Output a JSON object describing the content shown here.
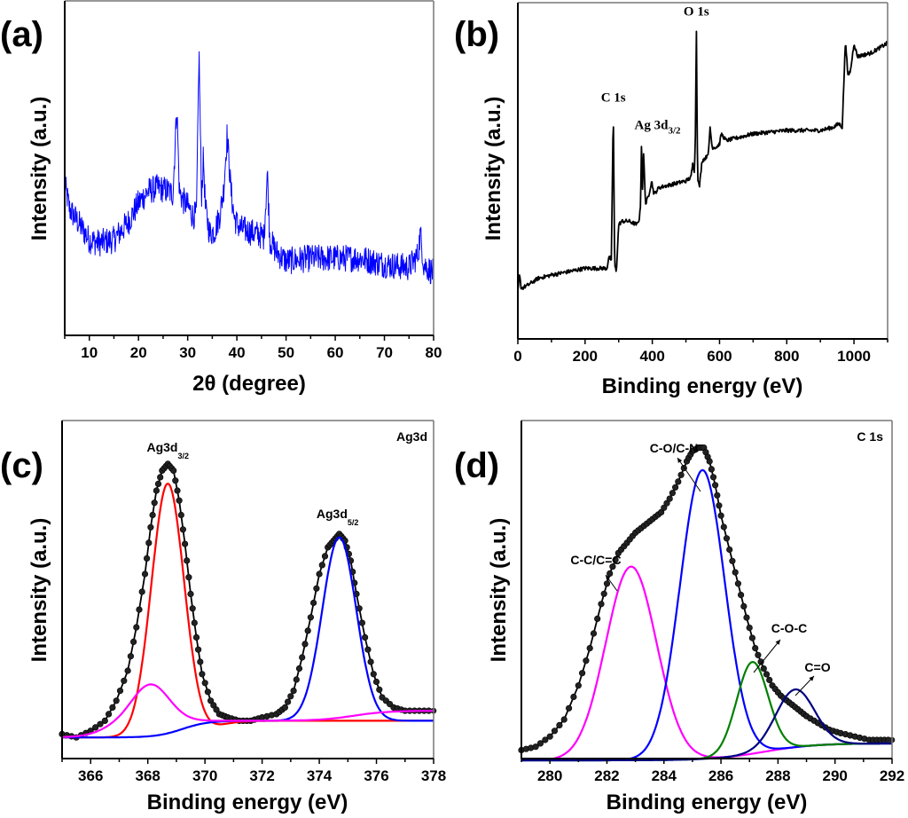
{
  "figure": {
    "panels": [
      "(a)",
      "(b)",
      "(c)",
      "(d)"
    ]
  },
  "chart_data": [
    {
      "id": "a",
      "type": "line",
      "panel_label": "(a)",
      "title": "",
      "xlabel": "2θ (degree)",
      "ylabel": "Intensity (a.u.)",
      "xlim": [
        5,
        80
      ],
      "ylim": [
        0,
        100
      ],
      "xticks": [
        10,
        20,
        30,
        40,
        50,
        60,
        70,
        80
      ],
      "yticks": [],
      "grid": false,
      "series": [
        {
          "name": "XRD pattern",
          "color": "#0000ff",
          "style": "noisy-line",
          "x": [
            5,
            6,
            8,
            10,
            12,
            15,
            18,
            20,
            22,
            24,
            26,
            27,
            27.8,
            28.3,
            29,
            30,
            31,
            31.8,
            32.3,
            32.8,
            33.2,
            33.6,
            34.5,
            35.5,
            36.5,
            37.3,
            38,
            38.3,
            38.8,
            39.5,
            40.5,
            42,
            44,
            45.5,
            46.2,
            46.7,
            48,
            50,
            55,
            60,
            65,
            70,
            75,
            76.8,
            77.3,
            78,
            80
          ],
          "y": [
            44,
            36,
            31,
            26,
            25,
            26,
            32,
            38,
            42,
            43,
            42,
            41,
            70,
            42,
            39,
            37,
            34,
            34,
            88,
            40,
            53,
            36,
            28,
            29,
            34,
            42,
            60,
            54,
            42,
            33,
            30,
            29,
            28,
            27,
            48,
            26,
            22,
            19,
            20,
            20,
            20,
            18,
            17,
            21,
            28,
            18,
            15
          ]
        }
      ],
      "annotations": []
    },
    {
      "id": "b",
      "type": "line",
      "panel_label": "(b)",
      "title": "",
      "xlabel": "Binding energy (eV)",
      "ylabel": "Intensity (a.u.)",
      "xlim": [
        0,
        1100
      ],
      "ylim": [
        0,
        100
      ],
      "xticks": [
        0,
        200,
        400,
        600,
        800,
        1000
      ],
      "yticks": [],
      "grid": false,
      "series": [
        {
          "name": "XPS survey",
          "color": "#000000",
          "style": "line",
          "x": [
            0,
            5,
            10,
            30,
            60,
            100,
            150,
            200,
            240,
            265,
            270,
            275,
            278,
            284,
            288,
            293,
            300,
            310,
            330,
            355,
            362,
            365,
            368,
            371,
            374,
            380,
            390,
            398,
            405,
            420,
            460,
            500,
            515,
            520,
            525,
            528,
            531,
            535,
            540,
            548,
            560,
            568,
            572,
            578,
            590,
            600,
            605,
            620,
            700,
            800,
            900,
            940,
            955,
            965,
            970,
            975,
            982,
            990,
            1000,
            1010,
            1050,
            1100
          ],
          "y": [
            14,
            19,
            15,
            16,
            18,
            19,
            20,
            21,
            21,
            21,
            24,
            24,
            22,
            68,
            22,
            20,
            34,
            35,
            35,
            34,
            36,
            40,
            59,
            44,
            55,
            40,
            43,
            47,
            43,
            45,
            46,
            47,
            48,
            52,
            50,
            60,
            93,
            48,
            45,
            53,
            54,
            56,
            63,
            57,
            57,
            58,
            61,
            59,
            61,
            62,
            62,
            63,
            64,
            63,
            77,
            89,
            78,
            80,
            88,
            84,
            85,
            88
          ]
        }
      ],
      "annotations": [
        {
          "text": "C 1s",
          "x": 284,
          "y": 68
        },
        {
          "text": "Ag 3d",
          "sub": "3/2",
          "x": 368,
          "y": 59
        },
        {
          "text": "O 1s",
          "x": 531,
          "y": 93
        }
      ]
    },
    {
      "id": "c",
      "type": "line",
      "panel_label": "(c)",
      "title": "Ag3d",
      "xlabel": "Binding energy (eV)",
      "ylabel": "Intensity (a.u.)",
      "xlim": [
        365,
        378
      ],
      "ylim": [
        0,
        100
      ],
      "xticks": [
        366,
        368,
        370,
        372,
        374,
        376,
        378
      ],
      "yticks": [],
      "grid": false,
      "series": [
        {
          "name": "Experimental",
          "color": "#000000",
          "style": "line-with-markers",
          "x": [
            365.0,
            365.5,
            366.0,
            366.5,
            366.9,
            367.3,
            367.6,
            367.9,
            368.1,
            368.3,
            368.5,
            368.7,
            368.9,
            369.1,
            369.3,
            369.5,
            369.7,
            369.9,
            370.2,
            370.5,
            370.8,
            371.2,
            371.6,
            372.0,
            372.5,
            372.8,
            373.1,
            373.4,
            373.7,
            374.0,
            374.3,
            374.5,
            374.7,
            374.9,
            375.1,
            375.3,
            375.6,
            375.9,
            376.2,
            376.6,
            377.0,
            377.5,
            378.0
          ],
          "y": [
            6,
            5,
            7,
            10,
            16,
            25,
            38,
            54,
            68,
            79,
            85,
            87,
            85,
            76,
            63,
            48,
            35,
            24,
            16,
            12,
            11,
            10,
            10,
            11,
            12,
            14,
            19,
            29,
            41,
            54,
            62,
            64,
            66,
            64,
            58,
            48,
            35,
            24,
            17,
            14,
            13,
            13,
            13
          ]
        },
        {
          "name": "Ag3d3/2 fit",
          "color": "#ff0000",
          "style": "line",
          "peak": {
            "center": 368.7,
            "height": 76,
            "fwhm": 1.35
          },
          "baseline": 5
        },
        {
          "name": "Ag3d5/2 fit",
          "color": "#0000ff",
          "style": "line",
          "peak": {
            "center": 374.7,
            "height": 55,
            "fwhm": 1.4
          },
          "baseline_step": {
            "from": 5,
            "to": 10,
            "center": 369.2
          }
        },
        {
          "name": "Satellite / background",
          "color": "#ff00ff",
          "style": "line",
          "peak": {
            "center": 368.1,
            "height": 11,
            "fwhm": 1.5
          },
          "baseline_step": {
            "from": 5,
            "to": 10,
            "center": 366.5
          },
          "tail_step": {
            "to": 13,
            "center": 375.2
          }
        }
      ],
      "annotations": [
        {
          "text": "Ag3d",
          "sub": "3/2",
          "x": 368.7,
          "y": 87
        },
        {
          "text": "Ag3d",
          "sub": "5/2",
          "x": 374.7,
          "y": 66
        }
      ]
    },
    {
      "id": "d",
      "type": "line",
      "panel_label": "(d)",
      "title": "C 1s",
      "xlabel": "Binding energy (eV)",
      "ylabel": "Intensity (a.u.)",
      "xlim": [
        279,
        292
      ],
      "ylim": [
        0,
        100
      ],
      "xticks": [
        280,
        282,
        284,
        286,
        288,
        290,
        292
      ],
      "yticks": [],
      "grid": false,
      "series": [
        {
          "name": "Experimental",
          "color": "#000000",
          "style": "line-with-markers",
          "x": [
            279.0,
            279.5,
            280.0,
            280.5,
            281.0,
            281.4,
            281.8,
            282.1,
            282.4,
            282.7,
            283.0,
            283.3,
            283.6,
            283.9,
            284.2,
            284.5,
            284.8,
            285.0,
            285.2,
            285.4,
            285.6,
            285.8,
            286.0,
            286.3,
            286.6,
            286.9,
            287.2,
            287.5,
            287.8,
            288.1,
            288.4,
            288.7,
            289.0,
            289.4,
            289.8,
            290.2,
            290.7,
            291.2,
            291.6,
            292.0
          ],
          "y": [
            3,
            4,
            7,
            12,
            22,
            33,
            46,
            55,
            61,
            64,
            67,
            69,
            71,
            73,
            77,
            82,
            88,
            91,
            92,
            92,
            88,
            81,
            72,
            62,
            52,
            42,
            33,
            27,
            22,
            19,
            17,
            15,
            13,
            11,
            9,
            8,
            7,
            6,
            6,
            6
          ]
        },
        {
          "name": "C-C/C=C",
          "color": "#ff00ff",
          "style": "line",
          "peak": {
            "center": 282.85,
            "height": 57,
            "fwhm": 2.1
          }
        },
        {
          "name": "C-O/C-N",
          "color": "#0000ff",
          "style": "line",
          "peak": {
            "center": 285.35,
            "height": 85,
            "fwhm": 1.85
          }
        },
        {
          "name": "C-O-C",
          "color": "#008000",
          "style": "line",
          "peak": {
            "center": 287.1,
            "height": 27,
            "fwhm": 1.3
          }
        },
        {
          "name": "C=O",
          "color": "#000080",
          "style": "line",
          "peak": {
            "center": 288.6,
            "height": 17,
            "fwhm": 1.6
          }
        }
      ],
      "background": {
        "from": 0,
        "to": 5,
        "center": 287.5
      },
      "annotations": [
        {
          "text": "C-C/C=C",
          "x": 282.5,
          "y": 66,
          "arrow": true
        },
        {
          "text": "C-O/C-N",
          "x": 285.0,
          "y": 96,
          "arrow": true
        },
        {
          "text": "C-O-C",
          "x": 287.8,
          "y": 48,
          "arrow": true
        },
        {
          "text": "C=O",
          "x": 289.2,
          "y": 32,
          "arrow": true
        }
      ]
    }
  ]
}
